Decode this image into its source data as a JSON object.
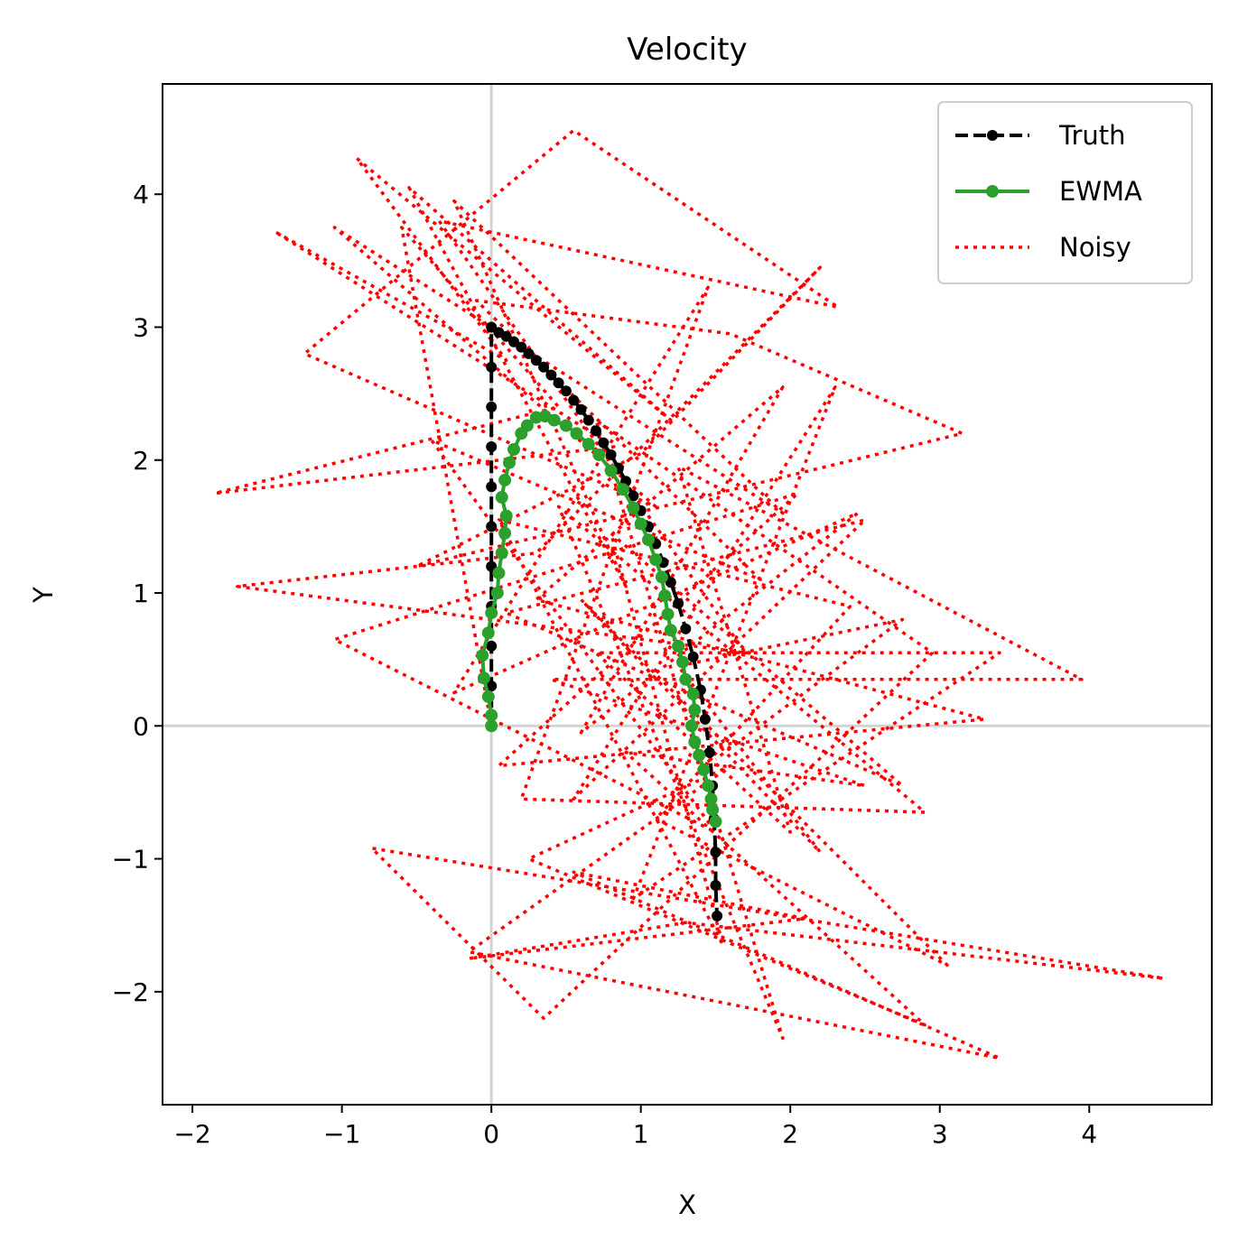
{
  "chart_data": {
    "type": "line",
    "title": "Velocity",
    "xlabel": "X",
    "ylabel": "Y",
    "xlim": [
      -2.2,
      4.82
    ],
    "ylim": [
      -2.85,
      4.83
    ],
    "xticks": [
      -2,
      -1,
      0,
      1,
      2,
      3,
      4
    ],
    "yticks": [
      -2,
      -1,
      0,
      1,
      2,
      3,
      4
    ],
    "xtick_labels": [
      "−2",
      "−1",
      "0",
      "1",
      "2",
      "3",
      "4"
    ],
    "ytick_labels": [
      "−2",
      "−1",
      "0",
      "1",
      "2",
      "3",
      "4"
    ],
    "grid": false,
    "reference_lines": {
      "x": 0,
      "y": 0,
      "color": "#d3d3d3"
    },
    "legend": {
      "placement": "top-right",
      "entries": [
        "Truth",
        "EWMA",
        "Noisy"
      ]
    },
    "series": [
      {
        "name": "Truth",
        "style": "dashed-markers",
        "color": "#000000",
        "points": [
          [
            0.0,
            0.0
          ],
          [
            0.0,
            0.3
          ],
          [
            0.0,
            0.6
          ],
          [
            0.0,
            0.9
          ],
          [
            0.0,
            1.2
          ],
          [
            0.0,
            1.5
          ],
          [
            0.0,
            1.8
          ],
          [
            0.0,
            2.1
          ],
          [
            0.0,
            2.4
          ],
          [
            0.0,
            2.7
          ],
          [
            0.0,
            3.0
          ],
          [
            0.05,
            2.96
          ],
          [
            0.1,
            2.93
          ],
          [
            0.15,
            2.89
          ],
          [
            0.2,
            2.85
          ],
          [
            0.25,
            2.8
          ],
          [
            0.3,
            2.75
          ],
          [
            0.35,
            2.7
          ],
          [
            0.4,
            2.64
          ],
          [
            0.45,
            2.58
          ],
          [
            0.5,
            2.52
          ],
          [
            0.55,
            2.45
          ],
          [
            0.6,
            2.38
          ],
          [
            0.65,
            2.3
          ],
          [
            0.7,
            2.22
          ],
          [
            0.75,
            2.13
          ],
          [
            0.8,
            2.04
          ],
          [
            0.85,
            1.94
          ],
          [
            0.9,
            1.84
          ],
          [
            0.95,
            1.73
          ],
          [
            1.0,
            1.62
          ],
          [
            1.05,
            1.5
          ],
          [
            1.1,
            1.37
          ],
          [
            1.15,
            1.23
          ],
          [
            1.2,
            1.08
          ],
          [
            1.25,
            0.92
          ],
          [
            1.3,
            0.73
          ],
          [
            1.35,
            0.52
          ],
          [
            1.4,
            0.27
          ],
          [
            1.43,
            0.05
          ],
          [
            1.46,
            -0.2
          ],
          [
            1.48,
            -0.45
          ],
          [
            1.49,
            -0.7
          ],
          [
            1.5,
            -0.95
          ],
          [
            1.5,
            -1.2
          ],
          [
            1.51,
            -1.43
          ]
        ]
      },
      {
        "name": "EWMA",
        "style": "solid-markers",
        "color": "#2ca02c",
        "points": [
          [
            0.0,
            0.0
          ],
          [
            0.0,
            0.08
          ],
          [
            -0.02,
            0.22
          ],
          [
            -0.05,
            0.36
          ],
          [
            -0.06,
            0.53
          ],
          [
            -0.02,
            0.7
          ],
          [
            0.0,
            0.85
          ],
          [
            0.04,
            1.0
          ],
          [
            0.05,
            1.15
          ],
          [
            0.07,
            1.3
          ],
          [
            0.09,
            1.45
          ],
          [
            0.1,
            1.58
          ],
          [
            0.07,
            1.72
          ],
          [
            0.09,
            1.85
          ],
          [
            0.12,
            1.98
          ],
          [
            0.15,
            2.08
          ],
          [
            0.2,
            2.2
          ],
          [
            0.24,
            2.26
          ],
          [
            0.3,
            2.32
          ],
          [
            0.36,
            2.33
          ],
          [
            0.42,
            2.3
          ],
          [
            0.5,
            2.26
          ],
          [
            0.57,
            2.2
          ],
          [
            0.65,
            2.12
          ],
          [
            0.72,
            2.04
          ],
          [
            0.8,
            1.92
          ],
          [
            0.88,
            1.78
          ],
          [
            0.95,
            1.64
          ],
          [
            1.0,
            1.52
          ],
          [
            1.05,
            1.4
          ],
          [
            1.1,
            1.25
          ],
          [
            1.14,
            1.12
          ],
          [
            1.16,
            0.98
          ],
          [
            1.18,
            0.84
          ],
          [
            1.2,
            0.72
          ],
          [
            1.25,
            0.6
          ],
          [
            1.28,
            0.48
          ],
          [
            1.3,
            0.35
          ],
          [
            1.35,
            0.24
          ],
          [
            1.36,
            0.12
          ],
          [
            1.34,
            0.0
          ],
          [
            1.36,
            -0.12
          ],
          [
            1.39,
            -0.22
          ],
          [
            1.42,
            -0.33
          ],
          [
            1.45,
            -0.45
          ],
          [
            1.47,
            -0.55
          ],
          [
            1.48,
            -0.63
          ],
          [
            1.5,
            -0.72
          ]
        ]
      },
      {
        "name": "Noisy",
        "style": "dotted",
        "color": "#ff0000",
        "points": [
          [
            0.0,
            0.0
          ],
          [
            -0.6,
            3.75
          ],
          [
            0.45,
            2.4
          ],
          [
            -1.85,
            1.75
          ],
          [
            0.82,
            2.1
          ],
          [
            -1.45,
            3.72
          ],
          [
            0.1,
            2.75
          ],
          [
            -0.9,
            4.27
          ],
          [
            1.2,
            2.3
          ],
          [
            -0.55,
            4.05
          ],
          [
            0.9,
            1.05
          ],
          [
            -0.25,
            3.95
          ],
          [
            1.95,
            1.6
          ],
          [
            -1.05,
            3.75
          ],
          [
            1.1,
            1.65
          ],
          [
            -1.25,
            2.8
          ],
          [
            0.55,
            4.48
          ],
          [
            2.32,
            3.15
          ],
          [
            -0.35,
            3.8
          ],
          [
            1.7,
            0.55
          ],
          [
            -1.7,
            1.05
          ],
          [
            0.3,
            1.3
          ],
          [
            2.2,
            3.45
          ],
          [
            1.0,
            2.05
          ],
          [
            -0.5,
            1.2
          ],
          [
            3.15,
            2.2
          ],
          [
            1.6,
            2.95
          ],
          [
            -0.1,
            3.2
          ],
          [
            1.8,
            1.1
          ],
          [
            -0.4,
            2.15
          ],
          [
            1.5,
            -0.8
          ],
          [
            -1.05,
            0.65
          ],
          [
            2.05,
            1.75
          ],
          [
            0.05,
            -0.3
          ],
          [
            3.3,
            0.05
          ],
          [
            0.3,
            0.95
          ],
          [
            1.95,
            2.55
          ],
          [
            0.6,
            -0.05
          ],
          [
            2.45,
            1.6
          ],
          [
            -0.25,
            0.25
          ],
          [
            1.45,
            3.3
          ],
          [
            0.2,
            -0.55
          ],
          [
            2.9,
            -0.65
          ],
          [
            0.45,
            1.65
          ],
          [
            1.95,
            -2.35
          ],
          [
            0.7,
            2.3
          ],
          [
            2.95,
            0.55
          ],
          [
            0.35,
            -2.2
          ],
          [
            -0.8,
            -0.92
          ],
          [
            4.5,
            -1.9
          ],
          [
            1.3,
            -1.48
          ],
          [
            -0.15,
            -1.75
          ],
          [
            2.1,
            -1.45
          ],
          [
            0.55,
            -1.1
          ],
          [
            3.4,
            -2.5
          ],
          [
            -0.15,
            -1.7
          ],
          [
            1.6,
            -0.3
          ],
          [
            0.25,
            -1.0
          ],
          [
            2.9,
            -2.25
          ],
          [
            0.9,
            -0.2
          ],
          [
            2.5,
            -0.45
          ],
          [
            0.4,
            0.35
          ],
          [
            3.95,
            0.35
          ],
          [
            1.25,
            1.95
          ],
          [
            2.0,
            -0.8
          ],
          [
            0.7,
            0.55
          ],
          [
            3.4,
            0.55
          ],
          [
            0.95,
            -1.3
          ],
          [
            2.3,
            2.55
          ],
          [
            0.55,
            -0.55
          ],
          [
            2.5,
            1.55
          ],
          [
            0.1,
            0.85
          ],
          [
            2.75,
            -0.45
          ],
          [
            0.8,
            1.45
          ],
          [
            1.55,
            -1.65
          ],
          [
            0.05,
            1.55
          ],
          [
            2.4,
            0.9
          ],
          [
            1.1,
            -0.7
          ],
          [
            3.05,
            -1.8
          ],
          [
            0.6,
            0.95
          ],
          [
            2.2,
            -0.95
          ],
          [
            1.25,
            0.45
          ],
          [
            2.75,
            0.8
          ],
          [
            1.5,
            -0.25
          ]
        ]
      }
    ]
  }
}
